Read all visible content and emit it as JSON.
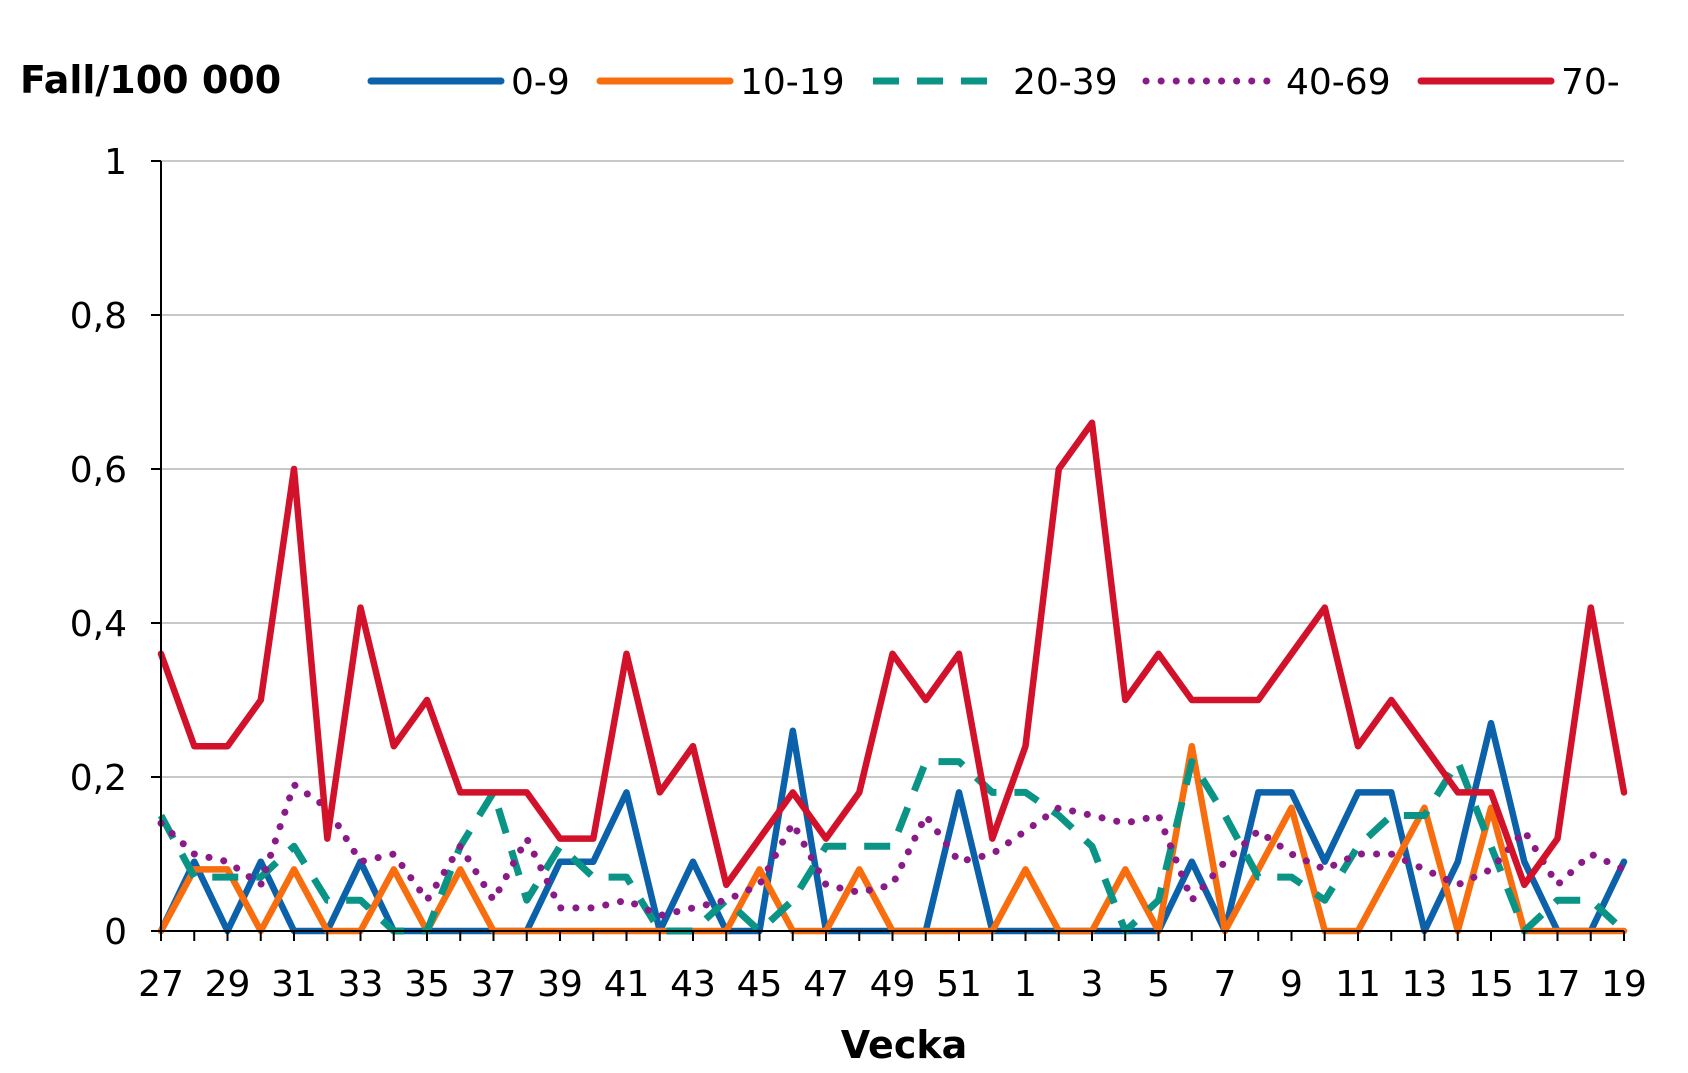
{
  "chart_data": {
    "type": "line",
    "y_axis_title": "Fall/100 000",
    "xlabel": "Vecka",
    "ylim": [
      0,
      1
    ],
    "y_ticks": [
      "0",
      "0,2",
      "0,4",
      "0,6",
      "0,8",
      "1"
    ],
    "y_tick_values": [
      0,
      0.2,
      0.4,
      0.6,
      0.8,
      1
    ],
    "grid": "horizontal",
    "legend_position": "top",
    "x": [
      27,
      28,
      29,
      30,
      31,
      32,
      33,
      34,
      35,
      36,
      37,
      38,
      39,
      40,
      41,
      42,
      43,
      44,
      45,
      46,
      47,
      48,
      49,
      50,
      51,
      52,
      1,
      2,
      3,
      4,
      5,
      6,
      7,
      8,
      9,
      10,
      11,
      12,
      13,
      14,
      15,
      16,
      17,
      18,
      19
    ],
    "x_tick_labels": [
      "27",
      "29",
      "31",
      "33",
      "35",
      "37",
      "39",
      "41",
      "43",
      "45",
      "47",
      "49",
      "51",
      "1",
      "3",
      "5",
      "7",
      "9",
      "11",
      "13",
      "15",
      "17",
      "19"
    ],
    "series": [
      {
        "name": "0-9",
        "color": "#0b62aa",
        "style": "solid",
        "values": [
          0,
          0.09,
          0,
          0.09,
          0,
          0,
          0.09,
          0,
          0,
          0,
          0,
          0,
          0.09,
          0.09,
          0.18,
          0,
          0.09,
          0,
          0,
          0.26,
          0,
          0,
          0,
          0,
          0.18,
          0,
          0,
          0,
          0,
          0,
          0,
          0.09,
          0,
          0.18,
          0.18,
          0.09,
          0.18,
          0.18,
          0,
          0.09,
          0.27,
          0.09,
          0,
          0,
          0.09
        ]
      },
      {
        "name": "10-19",
        "color": "#f86e0e",
        "style": "solid",
        "values": [
          0,
          0.08,
          0.08,
          0,
          0.08,
          0,
          0,
          0.08,
          0,
          0.08,
          0,
          0,
          0,
          0,
          0,
          0,
          0,
          0,
          0.08,
          0,
          0,
          0.08,
          0,
          0,
          0,
          0,
          0.08,
          0,
          0,
          0.08,
          0,
          0.24,
          0,
          0.08,
          0.16,
          0,
          0,
          0.08,
          0.16,
          0,
          0.16,
          0,
          0,
          0,
          0
        ]
      },
      {
        "name": "20-39",
        "color": "#0a9486",
        "style": "dashed",
        "values": [
          0.15,
          0.07,
          0.07,
          0.07,
          0.11,
          0.04,
          0.04,
          0,
          0,
          0.11,
          0.18,
          0.04,
          0.11,
          0.07,
          0.07,
          0,
          0,
          0.04,
          0,
          0.04,
          0.11,
          0.11,
          0.11,
          0.22,
          0.22,
          0.18,
          0.18,
          0.15,
          0.11,
          0,
          0.04,
          0.22,
          0.15,
          0.07,
          0.07,
          0.04,
          0.11,
          0.15,
          0.15,
          0.22,
          0.11,
          0,
          0.04,
          0.04,
          0
        ]
      },
      {
        "name": "40-69",
        "color": "#8b1a89",
        "style": "dotted",
        "values": [
          0.14,
          0.1,
          0.09,
          0.06,
          0.19,
          0.16,
          0.09,
          0.1,
          0.04,
          0.11,
          0.04,
          0.12,
          0.03,
          0.03,
          0.04,
          0.02,
          0.03,
          0.04,
          0.06,
          0.14,
          0.06,
          0.05,
          0.06,
          0.15,
          0.09,
          0.1,
          0.13,
          0.16,
          0.15,
          0.14,
          0.15,
          0.04,
          0.09,
          0.13,
          0.1,
          0.08,
          0.1,
          0.1,
          0.08,
          0.06,
          0.08,
          0.13,
          0.06,
          0.1,
          0.08
        ]
      },
      {
        "name": "70-",
        "color": "#d2112a",
        "style": "solid",
        "values": [
          0.36,
          0.24,
          0.24,
          0.3,
          0.6,
          0.12,
          0.42,
          0.24,
          0.3,
          0.18,
          0.18,
          0.18,
          0.12,
          0.12,
          0.36,
          0.18,
          0.24,
          0.06,
          0.12,
          0.18,
          0.12,
          0.18,
          0.36,
          0.3,
          0.36,
          0.12,
          0.24,
          0.6,
          0.66,
          0.3,
          0.36,
          0.3,
          0.3,
          0.3,
          0.36,
          0.42,
          0.24,
          0.3,
          0.24,
          0.18,
          0.18,
          0.06,
          0.12,
          0.42,
          0.18
        ]
      }
    ]
  }
}
